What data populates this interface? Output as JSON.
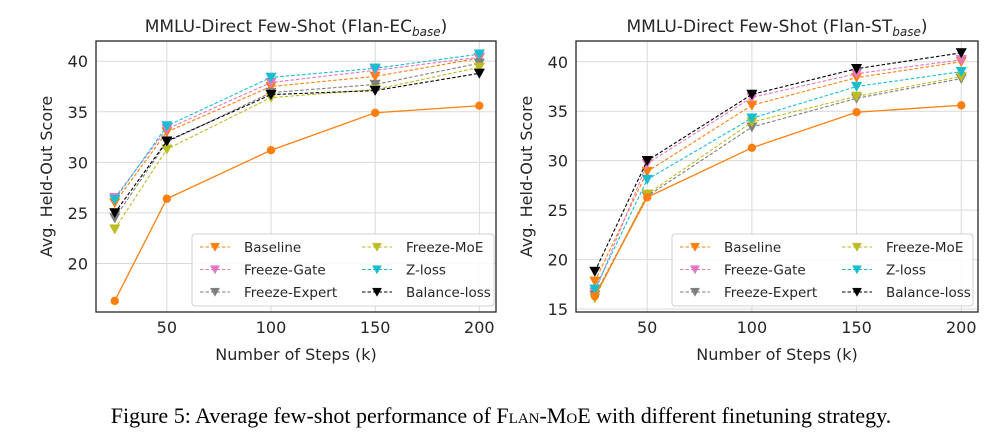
{
  "caption": {
    "prefix": "Figure 5: Average few-shot performance of ",
    "model": "Flan-MoE",
    "suffix": " with different finetuning strategy."
  },
  "chart_data": [
    {
      "type": "line",
      "title": "MMLU-Direct Few-Shot (Flan-EC",
      "title_subscript": "base",
      "title_close": ")",
      "xlabel": "Number of Steps (k)",
      "ylabel": "Avg. Held-Out Score",
      "x": [
        25,
        50,
        100,
        150,
        200
      ],
      "xticks": [
        50,
        100,
        150,
        200
      ],
      "yticks": [
        20,
        25,
        30,
        35,
        40
      ],
      "xlim": [
        16,
        208
      ],
      "ylim": [
        15.2,
        42.0
      ],
      "grid": true,
      "legend_position": "lower-right",
      "series": [
        {
          "name": "Baseline",
          "color": "#ff7f0e",
          "style": "dashed",
          "marker": "triangle-down",
          "in_legend": true,
          "values": [
            26.0,
            33.0,
            37.5,
            38.5,
            40.3
          ]
        },
        {
          "name": "Freeze-Gate",
          "color": "#e377c2",
          "style": "dashed",
          "marker": "triangle-down",
          "in_legend": true,
          "values": [
            26.5,
            33.3,
            37.9,
            39.1,
            40.4
          ]
        },
        {
          "name": "Freeze-Expert",
          "color": "#7f7f7f",
          "style": "dashed",
          "marker": "triangle-down",
          "in_legend": true,
          "values": [
            24.5,
            32.0,
            36.9,
            37.7,
            39.8
          ]
        },
        {
          "name": "Freeze-MoE",
          "color": "#bcbd22",
          "style": "dashed",
          "marker": "triangle-down",
          "in_legend": true,
          "values": [
            23.4,
            31.3,
            36.4,
            37.2,
            39.4
          ]
        },
        {
          "name": "Z-loss",
          "color": "#17becf",
          "style": "dashed",
          "marker": "triangle-down",
          "in_legend": true,
          "values": [
            26.3,
            33.6,
            38.4,
            39.3,
            40.7
          ]
        },
        {
          "name": "Balance-loss",
          "color": "#000000",
          "style": "dashed",
          "marker": "triangle-down",
          "in_legend": true,
          "values": [
            25.0,
            32.1,
            36.7,
            37.1,
            38.8
          ]
        },
        {
          "name": "",
          "color": "#ff7f0e",
          "style": "solid",
          "marker": "circle",
          "in_legend": false,
          "values": [
            16.3,
            26.4,
            31.2,
            34.9,
            35.6
          ]
        }
      ]
    },
    {
      "type": "line",
      "title": "MMLU-Direct Few-Shot (Flan-ST",
      "title_subscript": "base",
      "title_close": ")",
      "xlabel": "Number of Steps (k)",
      "ylabel": "Avg. Held-Out Score",
      "x": [
        25,
        50,
        100,
        150,
        200
      ],
      "xticks": [
        50,
        100,
        150,
        200
      ],
      "yticks": [
        15,
        20,
        25,
        30,
        35,
        40
      ],
      "xlim": [
        16,
        208
      ],
      "ylim": [
        14.7,
        42.1
      ],
      "grid": true,
      "legend_position": "lower-right",
      "series": [
        {
          "name": "Baseline",
          "color": "#ff7f0e",
          "style": "dashed",
          "marker": "triangle-down",
          "in_legend": true,
          "values": [
            17.8,
            28.9,
            35.6,
            38.4,
            40.0
          ]
        },
        {
          "name": "Freeze-Gate",
          "color": "#e377c2",
          "style": "dashed",
          "marker": "triangle-down",
          "in_legend": true,
          "values": [
            16.7,
            29.7,
            36.4,
            38.8,
            40.2
          ]
        },
        {
          "name": "Freeze-Expert",
          "color": "#7f7f7f",
          "style": "dashed",
          "marker": "triangle-down",
          "in_legend": true,
          "values": [
            16.4,
            26.4,
            33.4,
            36.3,
            38.3
          ]
        },
        {
          "name": "Freeze-MoE",
          "color": "#bcbd22",
          "style": "dashed",
          "marker": "triangle-down",
          "in_legend": true,
          "values": [
            16.1,
            26.6,
            33.9,
            36.5,
            38.5
          ]
        },
        {
          "name": "Z-loss",
          "color": "#17becf",
          "style": "dashed",
          "marker": "triangle-down",
          "in_legend": true,
          "values": [
            17.0,
            28.1,
            34.3,
            37.5,
            39.0
          ]
        },
        {
          "name": "Balance-loss",
          "color": "#000000",
          "style": "dashed",
          "marker": "triangle-down",
          "in_legend": true,
          "values": [
            18.8,
            30.0,
            36.7,
            39.3,
            40.9
          ]
        },
        {
          "name": "",
          "color": "#ff7f0e",
          "style": "solid",
          "marker": "circle",
          "in_legend": false,
          "values": [
            16.3,
            26.3,
            31.3,
            34.9,
            35.6
          ]
        }
      ]
    }
  ]
}
